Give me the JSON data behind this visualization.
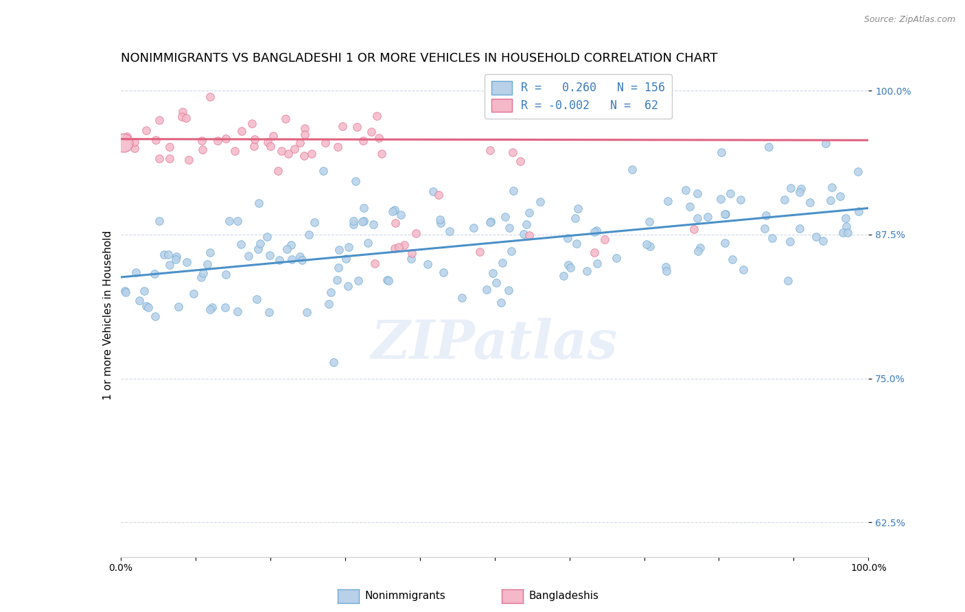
{
  "title": "NONIMMIGRANTS VS BANGLADESHI 1 OR MORE VEHICLES IN HOUSEHOLD CORRELATION CHART",
  "source": "Source: ZipAtlas.com",
  "ylabel": "1 or more Vehicles in Household",
  "yticks": [
    "62.5%",
    "75.0%",
    "87.5%",
    "100.0%"
  ],
  "legend_label1": "Nonimmigrants",
  "legend_label2": "Bangladeshis",
  "R1": 0.26,
  "N1": 156,
  "R2": -0.002,
  "N2": 62,
  "watermark": "ZIPatlas",
  "blue_fill": "#b8d0e8",
  "blue_edge": "#6aaad4",
  "pink_fill": "#f4b8c8",
  "pink_edge": "#e07090",
  "blue_line_color": "#4a90c8",
  "pink_line_color": "#e06080",
  "legend_text_color": "#3a7abf",
  "blue_line_x": [
    0.0,
    1.0
  ],
  "blue_line_y": [
    0.838,
    0.898
  ],
  "pink_line_x": [
    0.0,
    1.0
  ],
  "pink_line_y": [
    0.958,
    0.957
  ],
  "xlim": [
    0.0,
    1.0
  ],
  "ylim": [
    0.595,
    1.015
  ],
  "ytick_positions": [
    0.625,
    0.75,
    0.875,
    1.0
  ],
  "background_color": "#ffffff",
  "grid_color": "#d0d8e8",
  "title_fontsize": 13,
  "axis_label_fontsize": 11,
  "tick_fontsize": 10,
  "marker_size": 70,
  "seed": 42
}
